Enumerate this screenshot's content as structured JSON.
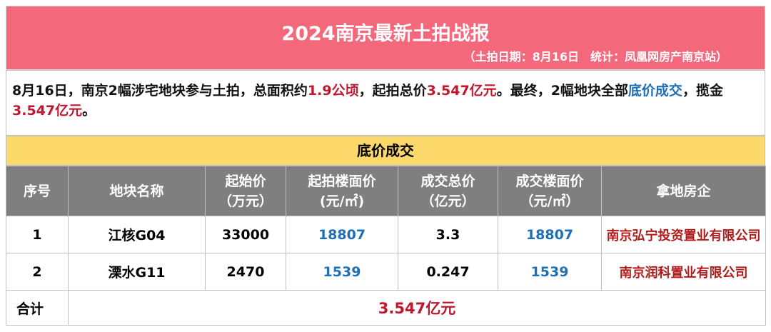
{
  "header": {
    "title": "2024南京最新土拍战报",
    "subtitle": "（土拍日期：8月16日　统计：凤凰网房产南京站）"
  },
  "summary": [
    "8月16日，南京2幅涉宅地块参与土拍，总面积约",
    "1.9公顷",
    "，起拍总价",
    "3.547亿元",
    "。最终，2幅地块全部",
    "底价成交",
    "，揽金",
    "3.547亿元",
    "。"
  ],
  "section": "底价成交",
  "table": {
    "header": [
      [
        "序号"
      ],
      [
        "地块名称"
      ],
      [
        "起始价",
        "（万元）"
      ],
      [
        "起拍楼面价",
        "(元/㎡)"
      ],
      [
        "成交总价",
        "（亿元）"
      ],
      [
        "成交楼面价",
        "（元/㎡）"
      ],
      [
        "拿地房企"
      ]
    ],
    "rows": [
      [
        "1",
        "江核G04",
        "33000",
        "18807",
        "3.3",
        "18807",
        "南京弘宁投资置业有限公司"
      ],
      [
        "2",
        "溧水G11",
        "2470",
        "1539",
        "0.247",
        "1539",
        "南京润科置业有限公司"
      ]
    ],
    "total": {
      "label": "合计",
      "value": "3.547亿元"
    }
  }
}
